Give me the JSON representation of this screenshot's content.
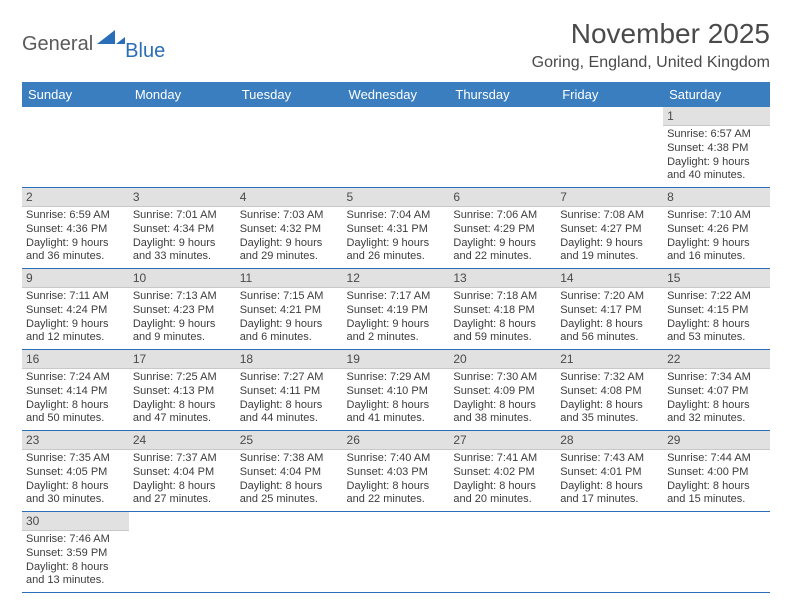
{
  "logo": {
    "general": "General",
    "blue": "Blue"
  },
  "title": "November 2025",
  "location": "Goring, England, United Kingdom",
  "colors": {
    "header_bg": "#3a7ec0",
    "daynum_bg": "#e1e1e1",
    "row_border": "#2a6db8",
    "text": "#3c3c3c"
  },
  "typography": {
    "title_fontsize": 28,
    "location_fontsize": 16,
    "header_fontsize": 13,
    "daynum_fontsize": 12,
    "info_fontsize": 11
  },
  "weekdays": [
    "Sunday",
    "Monday",
    "Tuesday",
    "Wednesday",
    "Thursday",
    "Friday",
    "Saturday"
  ],
  "weeks": [
    [
      null,
      null,
      null,
      null,
      null,
      null,
      {
        "n": "1",
        "sr": "Sunrise: 6:57 AM",
        "ss": "Sunset: 4:38 PM",
        "dl": "Daylight: 9 hours and 40 minutes."
      }
    ],
    [
      {
        "n": "2",
        "sr": "Sunrise: 6:59 AM",
        "ss": "Sunset: 4:36 PM",
        "dl": "Daylight: 9 hours and 36 minutes."
      },
      {
        "n": "3",
        "sr": "Sunrise: 7:01 AM",
        "ss": "Sunset: 4:34 PM",
        "dl": "Daylight: 9 hours and 33 minutes."
      },
      {
        "n": "4",
        "sr": "Sunrise: 7:03 AM",
        "ss": "Sunset: 4:32 PM",
        "dl": "Daylight: 9 hours and 29 minutes."
      },
      {
        "n": "5",
        "sr": "Sunrise: 7:04 AM",
        "ss": "Sunset: 4:31 PM",
        "dl": "Daylight: 9 hours and 26 minutes."
      },
      {
        "n": "6",
        "sr": "Sunrise: 7:06 AM",
        "ss": "Sunset: 4:29 PM",
        "dl": "Daylight: 9 hours and 22 minutes."
      },
      {
        "n": "7",
        "sr": "Sunrise: 7:08 AM",
        "ss": "Sunset: 4:27 PM",
        "dl": "Daylight: 9 hours and 19 minutes."
      },
      {
        "n": "8",
        "sr": "Sunrise: 7:10 AM",
        "ss": "Sunset: 4:26 PM",
        "dl": "Daylight: 9 hours and 16 minutes."
      }
    ],
    [
      {
        "n": "9",
        "sr": "Sunrise: 7:11 AM",
        "ss": "Sunset: 4:24 PM",
        "dl": "Daylight: 9 hours and 12 minutes."
      },
      {
        "n": "10",
        "sr": "Sunrise: 7:13 AM",
        "ss": "Sunset: 4:23 PM",
        "dl": "Daylight: 9 hours and 9 minutes."
      },
      {
        "n": "11",
        "sr": "Sunrise: 7:15 AM",
        "ss": "Sunset: 4:21 PM",
        "dl": "Daylight: 9 hours and 6 minutes."
      },
      {
        "n": "12",
        "sr": "Sunrise: 7:17 AM",
        "ss": "Sunset: 4:19 PM",
        "dl": "Daylight: 9 hours and 2 minutes."
      },
      {
        "n": "13",
        "sr": "Sunrise: 7:18 AM",
        "ss": "Sunset: 4:18 PM",
        "dl": "Daylight: 8 hours and 59 minutes."
      },
      {
        "n": "14",
        "sr": "Sunrise: 7:20 AM",
        "ss": "Sunset: 4:17 PM",
        "dl": "Daylight: 8 hours and 56 minutes."
      },
      {
        "n": "15",
        "sr": "Sunrise: 7:22 AM",
        "ss": "Sunset: 4:15 PM",
        "dl": "Daylight: 8 hours and 53 minutes."
      }
    ],
    [
      {
        "n": "16",
        "sr": "Sunrise: 7:24 AM",
        "ss": "Sunset: 4:14 PM",
        "dl": "Daylight: 8 hours and 50 minutes."
      },
      {
        "n": "17",
        "sr": "Sunrise: 7:25 AM",
        "ss": "Sunset: 4:13 PM",
        "dl": "Daylight: 8 hours and 47 minutes."
      },
      {
        "n": "18",
        "sr": "Sunrise: 7:27 AM",
        "ss": "Sunset: 4:11 PM",
        "dl": "Daylight: 8 hours and 44 minutes."
      },
      {
        "n": "19",
        "sr": "Sunrise: 7:29 AM",
        "ss": "Sunset: 4:10 PM",
        "dl": "Daylight: 8 hours and 41 minutes."
      },
      {
        "n": "20",
        "sr": "Sunrise: 7:30 AM",
        "ss": "Sunset: 4:09 PM",
        "dl": "Daylight: 8 hours and 38 minutes."
      },
      {
        "n": "21",
        "sr": "Sunrise: 7:32 AM",
        "ss": "Sunset: 4:08 PM",
        "dl": "Daylight: 8 hours and 35 minutes."
      },
      {
        "n": "22",
        "sr": "Sunrise: 7:34 AM",
        "ss": "Sunset: 4:07 PM",
        "dl": "Daylight: 8 hours and 32 minutes."
      }
    ],
    [
      {
        "n": "23",
        "sr": "Sunrise: 7:35 AM",
        "ss": "Sunset: 4:05 PM",
        "dl": "Daylight: 8 hours and 30 minutes."
      },
      {
        "n": "24",
        "sr": "Sunrise: 7:37 AM",
        "ss": "Sunset: 4:04 PM",
        "dl": "Daylight: 8 hours and 27 minutes."
      },
      {
        "n": "25",
        "sr": "Sunrise: 7:38 AM",
        "ss": "Sunset: 4:04 PM",
        "dl": "Daylight: 8 hours and 25 minutes."
      },
      {
        "n": "26",
        "sr": "Sunrise: 7:40 AM",
        "ss": "Sunset: 4:03 PM",
        "dl": "Daylight: 8 hours and 22 minutes."
      },
      {
        "n": "27",
        "sr": "Sunrise: 7:41 AM",
        "ss": "Sunset: 4:02 PM",
        "dl": "Daylight: 8 hours and 20 minutes."
      },
      {
        "n": "28",
        "sr": "Sunrise: 7:43 AM",
        "ss": "Sunset: 4:01 PM",
        "dl": "Daylight: 8 hours and 17 minutes."
      },
      {
        "n": "29",
        "sr": "Sunrise: 7:44 AM",
        "ss": "Sunset: 4:00 PM",
        "dl": "Daylight: 8 hours and 15 minutes."
      }
    ],
    [
      {
        "n": "30",
        "sr": "Sunrise: 7:46 AM",
        "ss": "Sunset: 3:59 PM",
        "dl": "Daylight: 8 hours and 13 minutes."
      },
      null,
      null,
      null,
      null,
      null,
      null
    ]
  ]
}
